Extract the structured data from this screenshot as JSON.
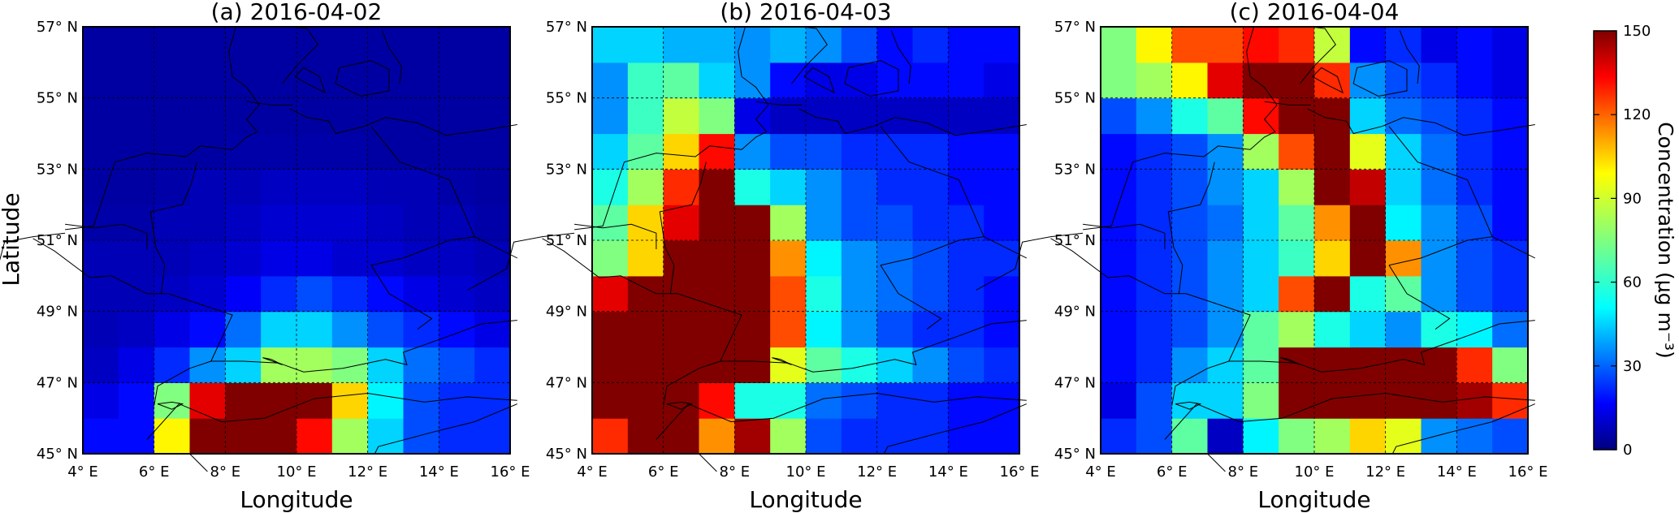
{
  "figure": {
    "y_axis_label": "Latitude",
    "x_axis_label": "Longitude",
    "colorbar": {
      "label": "Concentration (μg m⁻³)",
      "min": 0,
      "max": 150,
      "ticks": [
        "0",
        "30",
        "60",
        "90",
        "120",
        "150"
      ],
      "colormap": "jet"
    }
  },
  "chart_data": [
    {
      "type": "heatmap",
      "title": "(a) 2016-04-02",
      "x_range": [
        4,
        16
      ],
      "y_range": [
        45,
        57
      ],
      "x_ticks": [
        "4° E",
        "6° E",
        "8° E",
        "10° E",
        "12° E",
        "14° E",
        "16° E"
      ],
      "y_ticks": [
        "45° N",
        "47° N",
        "49° N",
        "51° N",
        "53° N",
        "55° N",
        "57° N"
      ],
      "grid": true,
      "rows_south_to_north": [
        [
          20,
          20,
          95,
          150,
          150,
          150,
          130,
          80,
          50,
          30,
          25,
          25
        ],
        [
          15,
          20,
          75,
          135,
          150,
          150,
          150,
          100,
          55,
          30,
          25,
          25
        ],
        [
          10,
          15,
          25,
          40,
          50,
          80,
          80,
          75,
          50,
          35,
          30,
          25
        ],
        [
          8,
          10,
          15,
          20,
          35,
          50,
          50,
          40,
          30,
          25,
          20,
          15
        ],
        [
          8,
          8,
          10,
          12,
          18,
          25,
          30,
          25,
          20,
          15,
          12,
          10
        ],
        [
          8,
          8,
          8,
          10,
          12,
          15,
          15,
          12,
          12,
          10,
          10,
          8
        ],
        [
          6,
          6,
          8,
          8,
          10,
          12,
          12,
          12,
          10,
          8,
          8,
          6
        ],
        [
          5,
          5,
          6,
          8,
          8,
          10,
          10,
          10,
          8,
          8,
          6,
          5
        ],
        [
          5,
          5,
          5,
          5,
          6,
          6,
          6,
          6,
          5,
          5,
          5,
          5
        ],
        [
          5,
          5,
          5,
          5,
          5,
          5,
          5,
          5,
          5,
          5,
          5,
          5
        ],
        [
          5,
          5,
          5,
          5,
          5,
          5,
          5,
          5,
          5,
          5,
          5,
          5
        ],
        [
          5,
          5,
          5,
          5,
          5,
          5,
          5,
          5,
          5,
          5,
          5,
          5
        ]
      ]
    },
    {
      "type": "heatmap",
      "title": "(b) 2016-04-03",
      "x_range": [
        4,
        16
      ],
      "y_range": [
        45,
        57
      ],
      "x_ticks": [
        "4° E",
        "6° E",
        "8° E",
        "10° E",
        "12° E",
        "14° E",
        "16° E"
      ],
      "y_ticks": [
        "45° N",
        "47° N",
        "49° N",
        "51° N",
        "53° N",
        "55° N",
        "57° N"
      ],
      "grid": true,
      "rows_south_to_north": [
        [
          125,
          150,
          150,
          110,
          145,
          80,
          30,
          25,
          25,
          25,
          20,
          20
        ],
        [
          150,
          150,
          150,
          130,
          60,
          60,
          35,
          30,
          25,
          25,
          20,
          20
        ],
        [
          150,
          150,
          150,
          150,
          150,
          90,
          70,
          60,
          50,
          40,
          30,
          25
        ],
        [
          150,
          150,
          150,
          150,
          150,
          120,
          55,
          40,
          30,
          25,
          25,
          20
        ],
        [
          135,
          150,
          150,
          150,
          150,
          120,
          60,
          40,
          35,
          30,
          25,
          20
        ],
        [
          75,
          100,
          150,
          150,
          150,
          110,
          55,
          40,
          35,
          30,
          25,
          25
        ],
        [
          70,
          100,
          135,
          150,
          150,
          80,
          40,
          30,
          30,
          25,
          25,
          20
        ],
        [
          60,
          80,
          125,
          150,
          60,
          50,
          40,
          30,
          25,
          25,
          20,
          20
        ],
        [
          50,
          70,
          100,
          130,
          40,
          30,
          30,
          25,
          25,
          25,
          20,
          20
        ],
        [
          40,
          65,
          85,
          75,
          15,
          10,
          10,
          10,
          10,
          10,
          10,
          10
        ],
        [
          40,
          65,
          70,
          50,
          40,
          20,
          15,
          15,
          20,
          20,
          20,
          15
        ],
        [
          50,
          50,
          45,
          45,
          40,
          45,
          40,
          30,
          20,
          25,
          20,
          20
        ]
      ]
    },
    {
      "type": "heatmap",
      "title": "(c) 2016-04-04",
      "x_range": [
        4,
        16
      ],
      "y_range": [
        45,
        57
      ],
      "x_ticks": [
        "4° E",
        "6° E",
        "8° E",
        "10° E",
        "12° E",
        "14° E",
        "16° E"
      ],
      "y_ticks": [
        "45° N",
        "47° N",
        "49° N",
        "51° N",
        "53° N",
        "55° N",
        "57° N"
      ],
      "grid": true,
      "rows_south_to_north": [
        [
          25,
          30,
          70,
          10,
          55,
          75,
          80,
          100,
          90,
          40,
          35,
          30
        ],
        [
          15,
          30,
          50,
          50,
          75,
          150,
          150,
          150,
          150,
          150,
          145,
          125
        ],
        [
          20,
          25,
          40,
          50,
          70,
          150,
          150,
          150,
          150,
          150,
          125,
          75
        ],
        [
          20,
          25,
          30,
          40,
          70,
          80,
          60,
          50,
          40,
          60,
          55,
          35
        ],
        [
          20,
          25,
          30,
          40,
          50,
          120,
          150,
          60,
          70,
          40,
          30,
          25
        ],
        [
          20,
          25,
          30,
          40,
          50,
          65,
          100,
          150,
          110,
          40,
          30,
          25
        ],
        [
          20,
          25,
          30,
          35,
          50,
          70,
          110,
          150,
          55,
          40,
          30,
          20
        ],
        [
          20,
          25,
          30,
          40,
          50,
          80,
          150,
          140,
          50,
          35,
          25,
          20
        ],
        [
          20,
          25,
          30,
          40,
          80,
          120,
          150,
          90,
          50,
          35,
          25,
          20
        ],
        [
          30,
          40,
          60,
          70,
          130,
          150,
          150,
          50,
          35,
          30,
          25,
          20
        ],
        [
          75,
          80,
          95,
          135,
          150,
          150,
          125,
          40,
          30,
          25,
          20,
          15
        ],
        [
          75,
          95,
          120,
          120,
          130,
          125,
          85,
          20,
          25,
          15,
          20,
          15
        ]
      ]
    }
  ]
}
